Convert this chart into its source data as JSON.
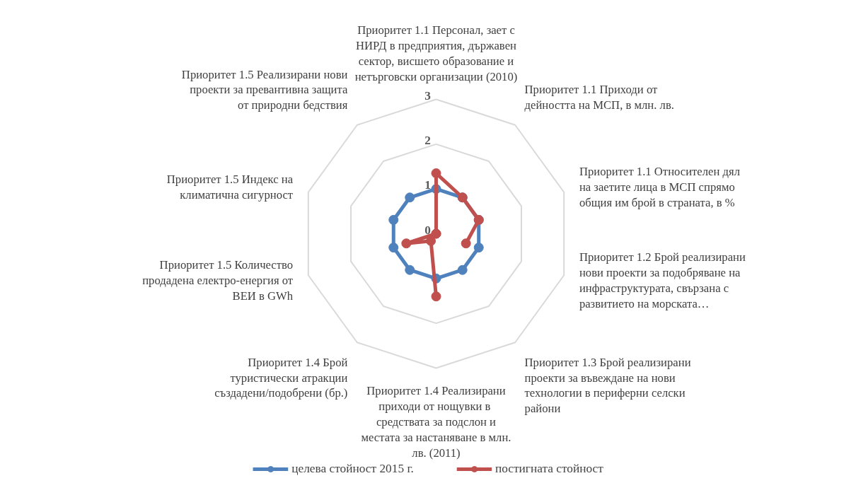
{
  "chart_data": {
    "type": "radar",
    "categories": [
      "Приоритет 1.1 Персонал, зает с НИРД в предприятия, държавен сектор, висшето образование и нетърговски организации (2010)",
      "Приоритет 1.1 Приходи от дейността на МСП, в млн. лв.",
      "Приоритет 1.1 Относителен дял на заетите лица в МСП спрямо общия им брой в страната, в %",
      "Приоритет 1.2 Брой реализирани нови проекти за подобряване на инфраструктурата,  свързана с развитието на морската…",
      "Приоритет 1.3 Брой реализирани проекти за въвеждане на нови технологии в периферни селски райони",
      "Приоритет 1.4 Реализирани приходи от нощувки  в средствата за подслон и местата за настаняване в млн. лв. (2011)",
      "Приоритет 1.4 Брой туристически атракции създадени/подобрени (бр.)",
      "Приоритет 1.5 Количество продадена електро-енергия от ВЕИ в GWh",
      "Приоритет 1.5 Индекс на климатична сигурност",
      "Приоритет 1.5 Реализирани нови проекти за превантивна защита от природни бедствия"
    ],
    "series": [
      {
        "name": "целева стойност 2015 г.",
        "color": "#4f81bd",
        "values": [
          1,
          1,
          1,
          1,
          1,
          1,
          1,
          1,
          1,
          1
        ]
      },
      {
        "name": "постигната стойност",
        "color": "#c0504d",
        "values": [
          1.35,
          1.0,
          1.0,
          0.7,
          null,
          1.4,
          0.2,
          0.7,
          0,
          0
        ]
      }
    ],
    "ylim": [
      0,
      3
    ],
    "yticks": [
      0,
      1,
      2,
      3
    ],
    "grid": true,
    "legend": "bottom",
    "marker": "circle",
    "line_style": "solid"
  }
}
